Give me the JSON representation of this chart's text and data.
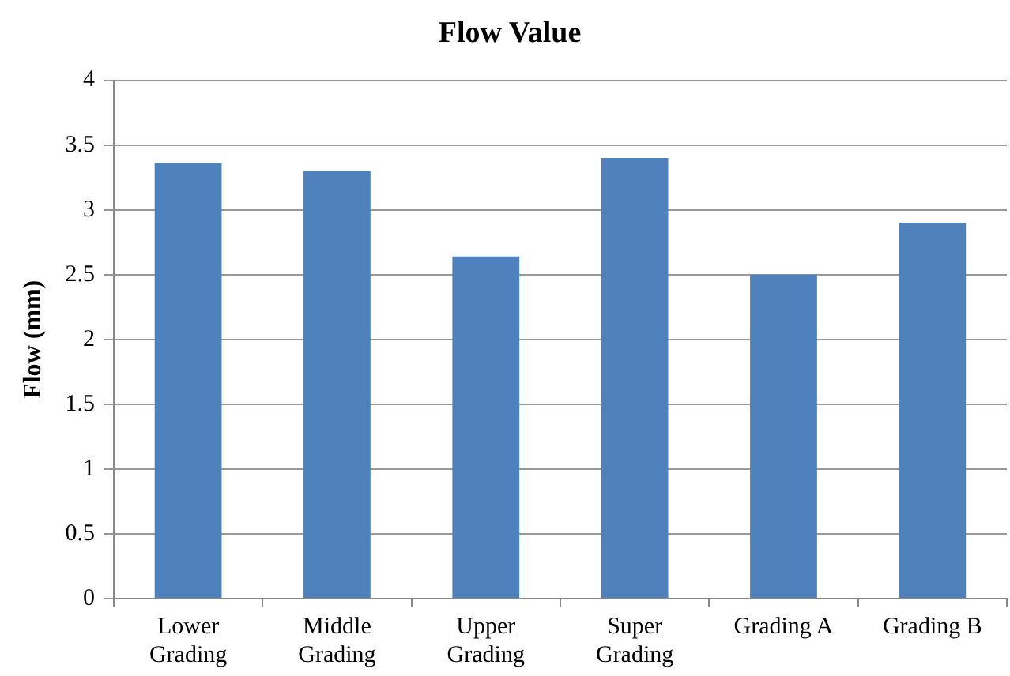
{
  "chart_data": {
    "type": "bar",
    "title": "Flow Value",
    "ylabel": "Flow (mm)",
    "categories": [
      "Lower Grading",
      "Middle Grading",
      "Upper Grading",
      "Super Grading",
      "Grading A",
      "Grading B"
    ],
    "values": [
      3.36,
      3.3,
      2.64,
      3.4,
      2.5,
      2.9
    ],
    "color": "#4f81bd",
    "ylim": [
      0,
      4
    ],
    "yticks": [
      0,
      0.5,
      1,
      1.5,
      2,
      2.5,
      3,
      3.5,
      4
    ],
    "grid": "y",
    "legend": false
  }
}
